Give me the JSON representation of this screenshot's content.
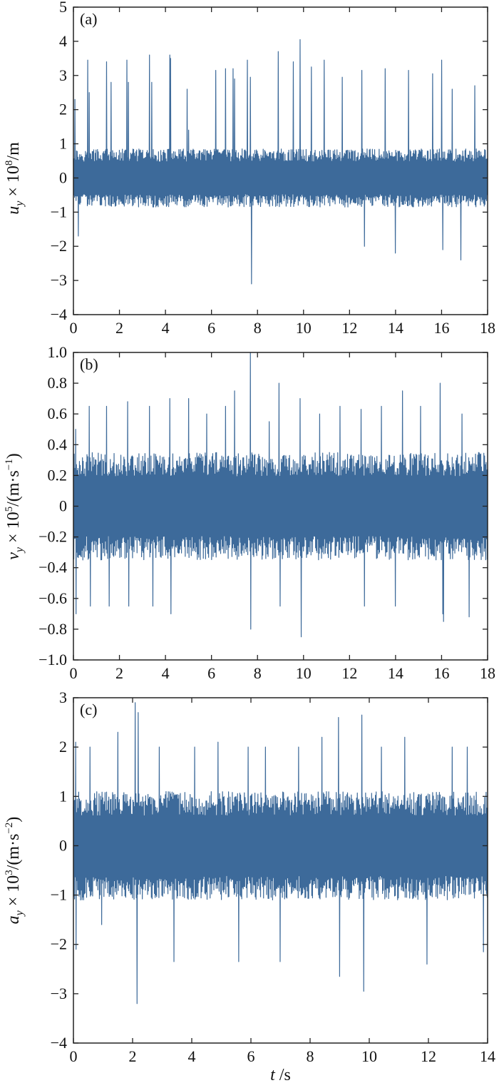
{
  "series_color": "#3d6a9a",
  "chart_data": [
    {
      "type": "line",
      "panel_label": "(a)",
      "ylabel": {
        "sym": "u",
        "sub": "y",
        "mid": " × 10",
        "sup": "8",
        "unit": "/m"
      },
      "xlabel": "",
      "xlim": [
        0,
        18
      ],
      "ylim": [
        -4,
        5
      ],
      "xticks": [
        0,
        2,
        4,
        6,
        8,
        10,
        12,
        14,
        16,
        18
      ],
      "yticks": [
        5,
        4,
        3,
        2,
        1,
        0,
        -1,
        -2,
        -3,
        -4
      ],
      "ytick_labels": [
        "5",
        "4",
        "3",
        "2",
        "1",
        "0",
        "−1",
        "−2",
        "−3",
        "−4"
      ],
      "base_amplitude": 0.85,
      "series": [
        {
          "x": [
            0.05,
            0.2,
            0.62,
            0.7,
            1.45,
            1.65,
            2.32,
            2.4,
            3.32,
            3.42,
            4.2,
            4.22,
            4.95,
            5.0,
            6.2,
            6.6,
            6.95,
            7.02,
            7.55,
            7.68,
            7.75,
            8.9,
            9.55,
            9.85,
            10.35,
            10.9,
            11.7,
            12.55,
            12.65,
            13.55,
            14.0,
            14.55,
            15.6,
            16.0,
            16.05,
            16.45,
            16.85,
            17.45
          ],
          "y": [
            2.3,
            -1.7,
            3.45,
            2.5,
            3.4,
            2.8,
            3.45,
            2.8,
            3.6,
            2.8,
            3.6,
            3.5,
            2.6,
            1.4,
            3.15,
            3.2,
            3.2,
            2.9,
            3.45,
            2.95,
            -3.1,
            3.7,
            3.4,
            4.05,
            3.25,
            3.45,
            2.95,
            3.15,
            -2.0,
            3.2,
            -2.2,
            3.15,
            3.05,
            3.45,
            -2.1,
            2.6,
            -2.4,
            2.7
          ]
        }
      ]
    },
    {
      "type": "line",
      "panel_label": "(b)",
      "ylabel": {
        "sym": "v",
        "sub": "y",
        "mid": " × 10",
        "sup": "5",
        "unit": "/(m·s",
        "unit_sup": "−1",
        "close": ")"
      },
      "xlabel": "",
      "xlim": [
        0,
        18
      ],
      "ylim": [
        -1.0,
        1.0
      ],
      "xticks": [
        0,
        2,
        4,
        6,
        8,
        10,
        12,
        14,
        16,
        18
      ],
      "yticks": [
        1.0,
        0.8,
        0.6,
        0.4,
        0.2,
        0,
        -0.2,
        -0.4,
        -0.6,
        -0.8,
        -1.0
      ],
      "ytick_labels": [
        "1.0",
        "0.8",
        "0.6",
        "0.4",
        "0.2",
        "0",
        "−0.2",
        "−0.4",
        "−0.6",
        "−0.8",
        "−1.0"
      ],
      "base_amplitude": 0.35,
      "series": [
        {
          "x": [
            0.1,
            0.12,
            0.7,
            0.75,
            1.45,
            1.55,
            2.35,
            2.4,
            3.3,
            3.45,
            4.2,
            4.25,
            5.0,
            5.8,
            6.6,
            7.0,
            7.7,
            7.72,
            8.5,
            8.95,
            9.0,
            9.85,
            9.9,
            10.7,
            11.6,
            12.5,
            12.65,
            13.4,
            14.0,
            14.3,
            15.1,
            15.95,
            16.05,
            16.1,
            16.9,
            17.2
          ],
          "y": [
            0.5,
            -0.7,
            0.65,
            -0.65,
            0.65,
            -0.65,
            0.68,
            -0.65,
            0.65,
            -0.65,
            0.7,
            -0.7,
            0.7,
            0.6,
            0.65,
            0.75,
            1.0,
            -0.8,
            0.55,
            0.8,
            -0.65,
            0.7,
            -0.85,
            0.6,
            0.65,
            0.63,
            -0.65,
            0.65,
            -0.65,
            0.75,
            0.65,
            0.8,
            -0.7,
            -0.75,
            0.6,
            -0.72
          ]
        }
      ]
    },
    {
      "type": "line",
      "panel_label": "(c)",
      "ylabel": {
        "sym": "a",
        "sub": "y",
        "mid": " × 10",
        "sup": "3",
        "unit": "/(m·s",
        "unit_sup": "−2",
        "close": ")"
      },
      "xlabel": "t /s",
      "xlim": [
        0,
        14
      ],
      "ylim": [
        -4,
        3
      ],
      "xticks": [
        0,
        2,
        4,
        6,
        8,
        10,
        12,
        14
      ],
      "yticks": [
        3,
        2,
        1,
        0,
        -1,
        -2,
        -3,
        -4
      ],
      "ytick_labels": [
        "3",
        "2",
        "1",
        "0",
        "−1",
        "−2",
        "−3",
        "−4"
      ],
      "base_amplitude": 1.1,
      "series": [
        {
          "x": [
            0.08,
            0.1,
            0.55,
            0.95,
            1.5,
            2.1,
            2.15,
            2.2,
            2.9,
            3.4,
            4.1,
            4.9,
            5.6,
            5.9,
            6.5,
            7.0,
            7.6,
            8.4,
            8.95,
            9.0,
            9.75,
            9.8,
            10.4,
            11.2,
            11.95,
            12.8,
            13.3,
            13.85
          ],
          "y": [
            2.1,
            -2.1,
            2.0,
            -1.6,
            2.3,
            2.9,
            -3.2,
            2.7,
            2.0,
            -2.35,
            2.0,
            2.1,
            -2.35,
            2.0,
            2.0,
            -2.35,
            2.0,
            2.2,
            2.6,
            -2.65,
            2.65,
            -2.95,
            2.0,
            2.2,
            -2.4,
            2.0,
            2.0,
            -2.15
          ]
        }
      ]
    }
  ]
}
